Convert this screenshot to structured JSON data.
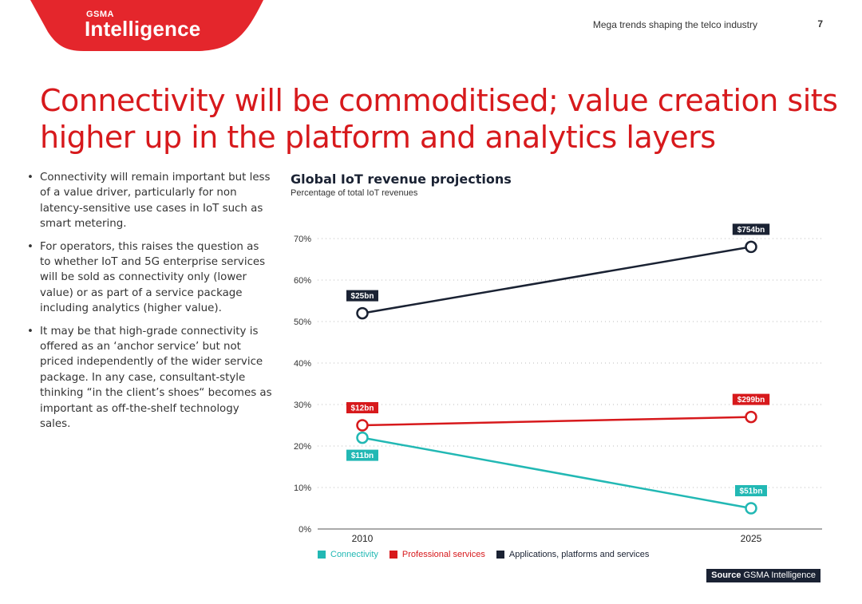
{
  "brand": {
    "small": "GSMA",
    "large": "Intelligence",
    "color": "#e4262c"
  },
  "header": {
    "text": "Mega trends shaping the telco industry",
    "page": "7"
  },
  "headline": "Connectivity will be commoditised; value creation sits higher up in the platform and analytics layers",
  "bullets": [
    "Connectivity will remain important but less of a value driver, particularly for non latency-sensitive use cases in IoT such as smart metering.",
    "For operators, this raises the question as to whether IoT and 5G enterprise services will be sold as connectivity only (lower value) or as part of a service package including analytics (higher value).",
    "It may be that high-grade connectivity is offered as an ‘anchor service’ but not priced independently of the wider service package. In any case, consultant-style thinking “in the client’s shoes“ becomes as important as off-the-shelf technology sales."
  ],
  "chart_data": {
    "type": "line",
    "title": "Global IoT revenue projections",
    "subtitle": "Percentage of total IoT revenues",
    "categories": [
      "2010",
      "2025"
    ],
    "ylim": [
      0,
      70
    ],
    "yticks": [
      "0%",
      "10%",
      "20%",
      "30%",
      "40%",
      "50%",
      "60%",
      "70%"
    ],
    "ytick_values": [
      0,
      10,
      20,
      30,
      40,
      50,
      60,
      70
    ],
    "grid": true,
    "legend_position": "bottom",
    "series": [
      {
        "name": "Connectivity",
        "color": "#22b8b4",
        "values": [
          22,
          5
        ],
        "labels": [
          "$11bn",
          "$51bn"
        ]
      },
      {
        "name": "Professional services",
        "color": "#d7191c",
        "values": [
          25,
          27
        ],
        "labels": [
          "$12bn",
          "$299bn"
        ]
      },
      {
        "name": "Applications, platforms and services",
        "color": "#1a2233",
        "values": [
          52,
          68
        ],
        "labels": [
          "$25bn",
          "$754bn"
        ]
      }
    ]
  },
  "source": {
    "bold": "Source",
    "text": "GSMA Intelligence"
  }
}
